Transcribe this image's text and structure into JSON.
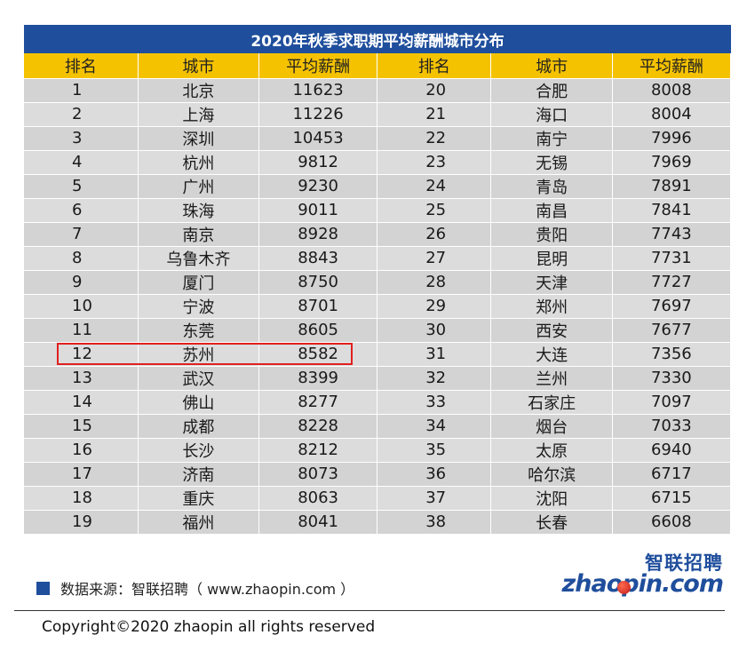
{
  "title": "2020年秋季求职期平均薪酬城市分布",
  "headers": [
    "排名",
    "城市",
    "平均薪酬",
    "排名",
    "城市",
    "平均薪酬"
  ],
  "rows": [
    [
      "1",
      "北京",
      "11623",
      "20",
      "合肥",
      "8008"
    ],
    [
      "2",
      "上海",
      "11226",
      "21",
      "海口",
      "8004"
    ],
    [
      "3",
      "深圳",
      "10453",
      "22",
      "南宁",
      "7996"
    ],
    [
      "4",
      "杭州",
      "9812",
      "23",
      "无锡",
      "7969"
    ],
    [
      "5",
      "广州",
      "9230",
      "24",
      "青岛",
      "7891"
    ],
    [
      "6",
      "珠海",
      "9011",
      "25",
      "南昌",
      "7841"
    ],
    [
      "7",
      "南京",
      "8928",
      "26",
      "贵阳",
      "7743"
    ],
    [
      "8",
      "乌鲁木齐",
      "8843",
      "27",
      "昆明",
      "7731"
    ],
    [
      "9",
      "厦门",
      "8750",
      "28",
      "天津",
      "7727"
    ],
    [
      "10",
      "宁波",
      "8701",
      "29",
      "郑州",
      "7697"
    ],
    [
      "11",
      "东莞",
      "8605",
      "30",
      "西安",
      "7677"
    ],
    [
      "12",
      "苏州",
      "8582",
      "31",
      "大连",
      "7356"
    ],
    [
      "13",
      "武汉",
      "8399",
      "32",
      "兰州",
      "7330"
    ],
    [
      "14",
      "佛山",
      "8277",
      "33",
      "石家庄",
      "7097"
    ],
    [
      "15",
      "成都",
      "8228",
      "34",
      "烟台",
      "7033"
    ],
    [
      "16",
      "长沙",
      "8212",
      "35",
      "太原",
      "6940"
    ],
    [
      "17",
      "济南",
      "8073",
      "36",
      "哈尔滨",
      "6717"
    ],
    [
      "18",
      "重庆",
      "8063",
      "37",
      "沈阳",
      "6715"
    ],
    [
      "19",
      "福州",
      "8041",
      "38",
      "长春",
      "6608"
    ]
  ],
  "highlight_row": "12",
  "source_text": "数据来源：智联招聘（ www.zhaopin.com ）",
  "logo": {
    "cn": "智联招聘",
    "en": "zhaopin.com"
  },
  "copyright": "Copyright©2020 zhaopin all rights reserved",
  "colors": {
    "title_bg": "#1f4e9c",
    "header_bg": "#f5c200",
    "row_bg": "#d3d3d3",
    "highlight": "#e02020"
  }
}
